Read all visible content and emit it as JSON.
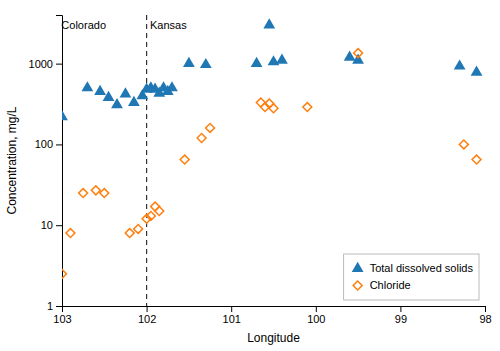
{
  "chart_data": {
    "type": "scatter",
    "xlabel": "Longitude",
    "ylabel": "Concentration, mg/L",
    "series": [
      {
        "name": "Total dissolved solids",
        "marker": "triangle",
        "x": [
          103.0,
          102.7,
          102.55,
          102.45,
          102.35,
          102.25,
          102.15,
          102.05,
          102.0,
          101.95,
          101.9,
          101.85,
          101.8,
          101.75,
          101.7,
          101.5,
          101.3,
          100.7,
          100.55,
          100.5,
          100.4,
          99.6,
          99.5,
          98.3,
          98.1
        ],
        "values": [
          220,
          500,
          450,
          380,
          310,
          420,
          330,
          400,
          480,
          500,
          480,
          430,
          500,
          450,
          500,
          1000,
          970,
          1000,
          3000,
          1050,
          1100,
          1200,
          1100,
          930,
          780
        ]
      },
      {
        "name": "Chloride",
        "marker": "open-diamond",
        "x": [
          103.0,
          102.9,
          102.75,
          102.6,
          102.5,
          102.2,
          102.1,
          102.0,
          101.95,
          101.9,
          101.85,
          101.55,
          101.35,
          101.25,
          100.65,
          100.6,
          100.55,
          100.5,
          100.1,
          99.5,
          98.25,
          98.1
        ],
        "values": [
          2.5,
          8,
          25,
          27,
          25,
          8,
          9,
          12,
          13,
          17,
          15,
          65,
          120,
          160,
          330,
          290,
          320,
          280,
          290,
          1350,
          100,
          65
        ]
      }
    ],
    "vlines": [
      {
        "x": 102.0,
        "line_style": "dashed"
      }
    ],
    "annotations": [
      {
        "text": "Colorado",
        "x": 102.48,
        "y": 3000
      },
      {
        "text": "Kansas",
        "x": 101.96,
        "y": 3000
      }
    ],
    "xlim": [
      103,
      98
    ],
    "ylim": [
      1,
      4000
    ],
    "xticks": [
      103,
      102,
      101,
      100,
      99,
      98
    ],
    "yticks": [
      1,
      10,
      100,
      1000
    ],
    "log": "y",
    "grid": false,
    "legend": "lower right"
  }
}
